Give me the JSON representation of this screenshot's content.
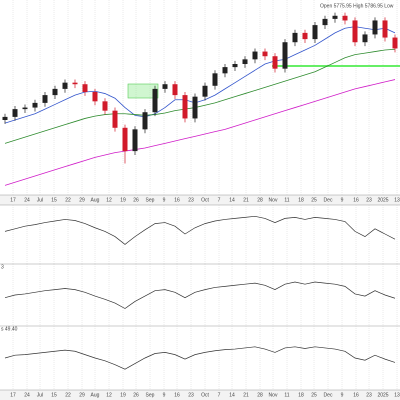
{
  "chart_data": [
    {
      "type": "candlestick",
      "annotation": "Open 5775.95 High 5786.95 Low",
      "open": [
        5400,
        5420,
        5470,
        5480,
        5510,
        5560,
        5600,
        5640,
        5630,
        5580,
        5520,
        5460,
        5350,
        5200,
        5340,
        5450,
        5600,
        5630,
        5560,
        5410,
        5550,
        5620,
        5700,
        5740,
        5760,
        5790,
        5840,
        5810,
        5730,
        5900,
        5960,
        5920,
        6010,
        6050,
        6070,
        6040,
        5900,
        5950,
        6040,
        5930
      ],
      "high": [
        5440,
        5490,
        5500,
        5530,
        5580,
        5620,
        5660,
        5660,
        5650,
        5600,
        5540,
        5480,
        5370,
        5360,
        5470,
        5620,
        5650,
        5650,
        5580,
        5570,
        5640,
        5720,
        5760,
        5780,
        5810,
        5860,
        5860,
        5830,
        5920,
        5980,
        5980,
        6030,
        6070,
        6090,
        6090,
        6060,
        5970,
        6060,
        6060,
        5950
      ],
      "low": [
        5375,
        5395,
        5445,
        5455,
        5485,
        5535,
        5575,
        5605,
        5555,
        5495,
        5435,
        5325,
        5120,
        5175,
        5315,
        5425,
        5575,
        5535,
        5385,
        5385,
        5525,
        5595,
        5675,
        5715,
        5735,
        5765,
        5785,
        5705,
        5705,
        5875,
        5895,
        5895,
        5985,
        6025,
        6015,
        5875,
        5875,
        5925,
        5905,
        5835
      ],
      "close": [
        5420,
        5470,
        5480,
        5510,
        5560,
        5600,
        5640,
        5630,
        5580,
        5520,
        5460,
        5350,
        5200,
        5340,
        5450,
        5600,
        5630,
        5560,
        5410,
        5550,
        5620,
        5700,
        5740,
        5760,
        5790,
        5840,
        5810,
        5730,
        5900,
        5960,
        5920,
        6010,
        6050,
        6070,
        6040,
        5900,
        5950,
        6040,
        5930,
        5860
      ],
      "up_color": "#222222",
      "down_color": "#d11a2a",
      "series": [
        {
          "color": "#3355cc",
          "values": [
            5380,
            5400,
            5420,
            5440,
            5470,
            5500,
            5530,
            5560,
            5580,
            5585,
            5570,
            5540,
            5480,
            5430,
            5420,
            5440,
            5480,
            5530,
            5530,
            5510,
            5530,
            5560,
            5600,
            5640,
            5680,
            5720,
            5760,
            5780,
            5790,
            5820,
            5850,
            5880,
            5920,
            5960,
            5990,
            6000,
            5990,
            5980,
            5990,
            5960
          ]
        },
        {
          "color": "#2e8b2e",
          "values": [
            5250,
            5270,
            5290,
            5310,
            5330,
            5350,
            5370,
            5390,
            5410,
            5425,
            5435,
            5440,
            5440,
            5435,
            5430,
            5435,
            5445,
            5460,
            5470,
            5480,
            5495,
            5510,
            5530,
            5550,
            5570,
            5590,
            5610,
            5630,
            5650,
            5670,
            5690,
            5710,
            5740,
            5770,
            5800,
            5820,
            5830,
            5840,
            5850,
            5855
          ]
        },
        {
          "color": "#d01cc8",
          "values": [
            4980,
            5000,
            5020,
            5040,
            5060,
            5080,
            5100,
            5120,
            5140,
            5160,
            5175,
            5190,
            5200,
            5210,
            5220,
            5235,
            5250,
            5265,
            5280,
            5295,
            5310,
            5325,
            5340,
            5360,
            5380,
            5400,
            5420,
            5440,
            5460,
            5480,
            5500,
            5520,
            5540,
            5560,
            5580,
            5600,
            5615,
            5630,
            5645,
            5660
          ]
        }
      ],
      "ylim": [
        4950,
        6120
      ],
      "grid": true,
      "xticks": [
        {
          "value": 0.8,
          "label": "17"
        },
        {
          "value": 2.2,
          "label": "24"
        },
        {
          "value": 3.5,
          "label": "Jul"
        },
        {
          "value": 4.9,
          "label": "15"
        },
        {
          "value": 6.3,
          "label": "22"
        },
        {
          "value": 7.7,
          "label": "29"
        },
        {
          "value": 9.0,
          "label": "Aug"
        },
        {
          "value": 10.4,
          "label": "12"
        },
        {
          "value": 11.8,
          "label": "19"
        },
        {
          "value": 13.1,
          "label": "26"
        },
        {
          "value": 14.5,
          "label": "Sep"
        },
        {
          "value": 15.9,
          "label": "9"
        },
        {
          "value": 17.2,
          "label": "16"
        },
        {
          "value": 18.6,
          "label": "23"
        },
        {
          "value": 20.0,
          "label": "Oct"
        },
        {
          "value": 21.4,
          "label": "7"
        },
        {
          "value": 22.7,
          "label": "14"
        },
        {
          "value": 24.1,
          "label": "21"
        },
        {
          "value": 25.5,
          "label": "28"
        },
        {
          "value": 26.8,
          "label": "Nov"
        },
        {
          "value": 28.2,
          "label": "11"
        },
        {
          "value": 29.6,
          "label": "18"
        },
        {
          "value": 30.9,
          "label": "25"
        },
        {
          "value": 32.3,
          "label": "Dec"
        },
        {
          "value": 33.7,
          "label": "9"
        },
        {
          "value": 35.1,
          "label": "16"
        },
        {
          "value": 36.4,
          "label": "23"
        },
        {
          "value": 37.8,
          "label": "2025"
        },
        {
          "value": 39.2,
          "label": "13"
        }
      ]
    },
    {
      "type": "line",
      "color": "#333333",
      "ylim": [
        0,
        100
      ],
      "values": [
        55,
        60,
        65,
        68,
        72,
        75,
        78,
        76,
        70,
        62,
        55,
        45,
        30,
        45,
        58,
        70,
        72,
        65,
        50,
        62,
        70,
        75,
        78,
        80,
        82,
        84,
        80,
        72,
        80,
        82,
        78,
        82,
        80,
        78,
        74,
        55,
        45,
        60,
        50,
        40
      ]
    },
    {
      "type": "line",
      "label": "3",
      "color": "#333333",
      "ylim": [
        0,
        100
      ],
      "values": [
        45,
        50,
        52,
        55,
        58,
        60,
        62,
        60,
        55,
        48,
        42,
        35,
        25,
        38,
        48,
        58,
        60,
        55,
        45,
        55,
        60,
        64,
        66,
        68,
        70,
        72,
        68,
        60,
        70,
        74,
        70,
        74,
        72,
        70,
        66,
        52,
        48,
        58,
        50,
        44
      ]
    },
    {
      "type": "line",
      "label": "s 49.40",
      "color": "#333333",
      "ylim": [
        0,
        100
      ],
      "values": [
        50,
        55,
        56,
        58,
        60,
        62,
        64,
        62,
        56,
        50,
        45,
        38,
        30,
        40,
        50,
        58,
        60,
        56,
        48,
        56,
        60,
        63,
        65,
        66,
        68,
        70,
        66,
        60,
        68,
        70,
        67,
        70,
        68,
        66,
        62,
        50,
        46,
        55,
        48,
        42
      ]
    }
  ]
}
